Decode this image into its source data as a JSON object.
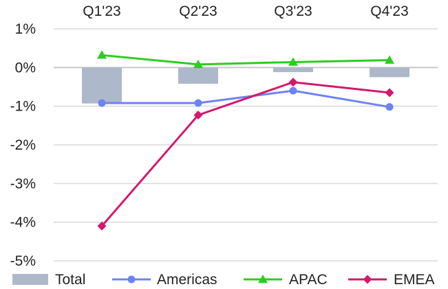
{
  "chart_data": {
    "type": "bar",
    "categories": [
      "Q1'23",
      "Q2'23",
      "Q3'23",
      "Q4'23"
    ],
    "ylim": [
      -5,
      1
    ],
    "yticks": [
      "1%",
      "0%",
      "-1%",
      "-2%",
      "-3%",
      "-4%",
      "-5%"
    ],
    "ytick_values": [
      1,
      0,
      -1,
      -2,
      -3,
      -4,
      -5
    ],
    "grid": true,
    "legend_position": "bottom",
    "series": [
      {
        "name": "Total",
        "kind": "bar",
        "color": "#adb9ca",
        "values": [
          -0.93,
          -0.42,
          -0.12,
          -0.25
        ]
      },
      {
        "name": "Americas",
        "kind": "line",
        "marker": "circle",
        "color": "#6d83f2",
        "values": [
          -0.92,
          -0.92,
          -0.6,
          -1.02
        ]
      },
      {
        "name": "APAC",
        "kind": "line",
        "marker": "triangle",
        "color": "#2dcc1f",
        "values": [
          0.32,
          0.08,
          0.14,
          0.19
        ]
      },
      {
        "name": "EMEA",
        "kind": "line",
        "marker": "diamond",
        "color": "#d4186c",
        "values": [
          -4.1,
          -1.23,
          -0.38,
          -0.65
        ]
      }
    ]
  }
}
